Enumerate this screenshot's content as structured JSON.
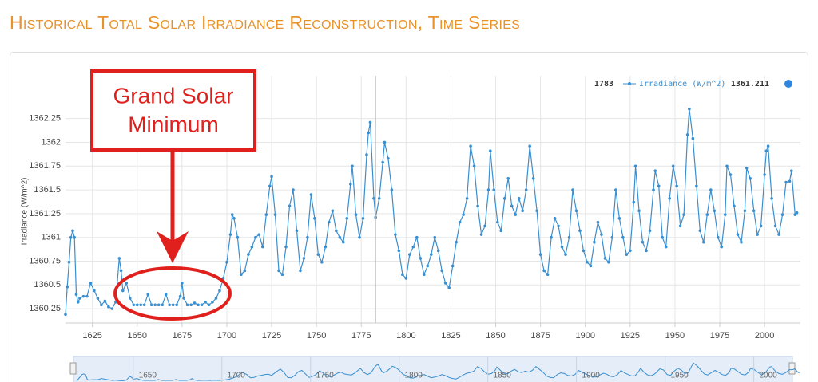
{
  "chart_data": {
    "type": "line",
    "title": "Historical Total Solar Irradiance Reconstruction, Time Series",
    "y_label": "Irradiance (W/m^2)",
    "x": [
      1610,
      1611,
      1612,
      1613,
      1614,
      1615,
      1616,
      1617,
      1618,
      1620,
      1622,
      1624,
      1626,
      1628,
      1630,
      1632,
      1634,
      1636,
      1638,
      1640,
      1641,
      1642,
      1644,
      1646,
      1648,
      1650,
      1652,
      1654,
      1656,
      1658,
      1660,
      1662,
      1664,
      1666,
      1668,
      1670,
      1672,
      1674,
      1675,
      1676,
      1678,
      1680,
      1682,
      1684,
      1686,
      1688,
      1690,
      1692,
      1694,
      1696,
      1698,
      1700,
      1702,
      1703,
      1704,
      1706,
      1708,
      1710,
      1712,
      1714,
      1716,
      1718,
      1720,
      1722,
      1724,
      1725,
      1727,
      1729,
      1731,
      1733,
      1735,
      1737,
      1739,
      1741,
      1743,
      1745,
      1747,
      1749,
      1751,
      1753,
      1755,
      1757,
      1759,
      1761,
      1763,
      1765,
      1767,
      1769,
      1770,
      1772,
      1774,
      1776,
      1778,
      1779,
      1780,
      1782,
      1783,
      1785,
      1787,
      1788,
      1790,
      1792,
      1794,
      1796,
      1798,
      1800,
      1802,
      1804,
      1806,
      1808,
      1810,
      1812,
      1814,
      1816,
      1818,
      1820,
      1822,
      1824,
      1826,
      1828,
      1830,
      1832,
      1834,
      1836,
      1838,
      1840,
      1842,
      1844,
      1846,
      1847,
      1849,
      1851,
      1853,
      1855,
      1857,
      1859,
      1861,
      1863,
      1865,
      1867,
      1869,
      1871,
      1873,
      1875,
      1877,
      1879,
      1881,
      1883,
      1885,
      1887,
      1889,
      1891,
      1893,
      1895,
      1897,
      1899,
      1901,
      1903,
      1905,
      1907,
      1909,
      1911,
      1913,
      1915,
      1917,
      1919,
      1921,
      1923,
      1925,
      1927,
      1928,
      1930,
      1932,
      1934,
      1936,
      1938,
      1939,
      1941,
      1943,
      1945,
      1947,
      1949,
      1951,
      1953,
      1955,
      1957,
      1958,
      1960,
      1962,
      1964,
      1966,
      1968,
      1970,
      1972,
      1974,
      1976,
      1978,
      1979,
      1981,
      1983,
      1985,
      1987,
      1989,
      1990,
      1992,
      1994,
      1996,
      1998,
      2000,
      2001,
      2002,
      2004,
      2006,
      2008,
      2010,
      2012,
      2014,
      2015,
      2017,
      2018
    ],
    "series": [
      {
        "name": "Irradiance (W/m^2)",
        "color": "#3a8fd0",
        "values": [
          1360.19,
          1360.48,
          1360.74,
          1361.0,
          1361.07,
          1361.0,
          1360.4,
          1360.32,
          1360.36,
          1360.38,
          1360.38,
          1360.52,
          1360.44,
          1360.36,
          1360.29,
          1360.33,
          1360.27,
          1360.25,
          1360.32,
          1360.78,
          1360.65,
          1360.44,
          1360.52,
          1360.36,
          1360.29,
          1360.29,
          1360.29,
          1360.29,
          1360.4,
          1360.29,
          1360.29,
          1360.29,
          1360.29,
          1360.4,
          1360.29,
          1360.29,
          1360.29,
          1360.38,
          1360.52,
          1360.36,
          1360.29,
          1360.29,
          1360.31,
          1360.29,
          1360.29,
          1360.32,
          1360.29,
          1360.32,
          1360.36,
          1360.44,
          1360.57,
          1360.74,
          1361.03,
          1361.24,
          1361.2,
          1361.0,
          1360.61,
          1360.65,
          1360.82,
          1360.9,
          1361.0,
          1361.03,
          1360.9,
          1361.24,
          1361.54,
          1361.64,
          1361.24,
          1360.65,
          1360.61,
          1360.9,
          1361.33,
          1361.5,
          1361.07,
          1360.65,
          1360.78,
          1361.0,
          1361.45,
          1361.2,
          1360.82,
          1360.74,
          1360.9,
          1361.16,
          1361.28,
          1361.07,
          1361.0,
          1360.95,
          1361.2,
          1361.56,
          1361.75,
          1361.24,
          1361.0,
          1361.2,
          1361.87,
          1362.1,
          1362.21,
          1361.41,
          1361.211,
          1361.41,
          1361.79,
          1362.0,
          1361.83,
          1361.5,
          1361.03,
          1360.86,
          1360.61,
          1360.57,
          1360.82,
          1360.9,
          1361.0,
          1360.78,
          1360.61,
          1360.7,
          1360.82,
          1361.0,
          1360.86,
          1360.65,
          1360.52,
          1360.47,
          1360.7,
          1360.95,
          1361.16,
          1361.24,
          1361.41,
          1361.96,
          1361.75,
          1361.33,
          1361.03,
          1361.12,
          1361.5,
          1361.91,
          1361.5,
          1361.16,
          1361.07,
          1361.41,
          1361.62,
          1361.33,
          1361.24,
          1361.41,
          1361.28,
          1361.5,
          1361.96,
          1361.62,
          1361.28,
          1360.82,
          1360.65,
          1360.61,
          1361.0,
          1361.2,
          1361.12,
          1360.9,
          1360.82,
          1361.0,
          1361.5,
          1361.28,
          1361.07,
          1360.86,
          1360.74,
          1360.7,
          1360.95,
          1361.16,
          1361.03,
          1360.78,
          1360.74,
          1361.0,
          1361.5,
          1361.2,
          1361.0,
          1360.82,
          1360.86,
          1361.37,
          1361.75,
          1361.28,
          1360.95,
          1360.86,
          1361.07,
          1361.5,
          1361.7,
          1361.54,
          1361.0,
          1360.9,
          1361.41,
          1361.75,
          1361.54,
          1361.12,
          1361.24,
          1362.08,
          1362.35,
          1362.04,
          1361.54,
          1361.07,
          1360.95,
          1361.24,
          1361.5,
          1361.28,
          1361.0,
          1360.9,
          1361.24,
          1361.75,
          1361.66,
          1361.33,
          1361.03,
          1360.95,
          1361.28,
          1361.73,
          1361.62,
          1361.28,
          1361.03,
          1361.12,
          1361.66,
          1361.91,
          1361.96,
          1361.41,
          1361.12,
          1361.03,
          1361.24,
          1361.58,
          1361.59,
          1361.7,
          1361.24,
          1361.26
        ]
      }
    ],
    "xlim": [
      1610,
      2020
    ],
    "xticks": [
      1625,
      1650,
      1675,
      1700,
      1725,
      1750,
      1775,
      1800,
      1825,
      1850,
      1875,
      1900,
      1925,
      1950,
      1975,
      2000
    ],
    "ylim": [
      1360.1,
      1362.7
    ],
    "yticks": [
      1360.25,
      1360.5,
      1360.75,
      1361,
      1361.25,
      1361.5,
      1361.75,
      1362,
      1362.25
    ],
    "grid": true,
    "crosshair_index": 96,
    "annotation": {
      "text_lines": [
        "Grand Solar",
        "Minimum"
      ]
    },
    "navigator": {
      "xticks": [
        1650,
        1700,
        1750,
        1800,
        1850,
        1900,
        1950,
        2000
      ]
    }
  }
}
